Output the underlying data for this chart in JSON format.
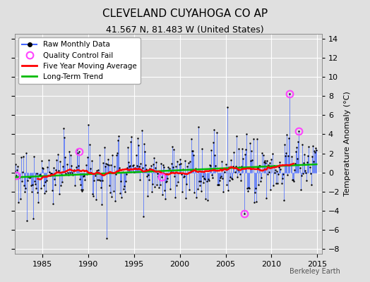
{
  "title": "CLEVELAND CUYAHOGA CO AP",
  "subtitle": "41.567 N, 81.483 W (United States)",
  "ylabel": "Temperature Anomaly (°C)",
  "credit": "Berkeley Earth",
  "xlim": [
    1982.0,
    2015.5
  ],
  "ylim": [
    -8.5,
    14.5
  ],
  "yticks": [
    -8,
    -6,
    -4,
    -2,
    0,
    2,
    4,
    6,
    8,
    10,
    12,
    14
  ],
  "xticks": [
    1985,
    1990,
    1995,
    2000,
    2005,
    2010,
    2015
  ],
  "fig_bg": "#e0e0e0",
  "plot_bg": "#dcdcdc",
  "grid_color": "#ffffff",
  "raw_line_color": "#4466ff",
  "dot_color": "#000000",
  "ma_color": "#ff0000",
  "trend_color": "#00bb00",
  "qc_color": "#ff44ff",
  "legend_items": [
    "Raw Monthly Data",
    "Quality Control Fail",
    "Five Year Moving Average",
    "Long-Term Trend"
  ],
  "title_fontsize": 11,
  "subtitle_fontsize": 9,
  "axis_fontsize": 8,
  "legend_fontsize": 7.5
}
